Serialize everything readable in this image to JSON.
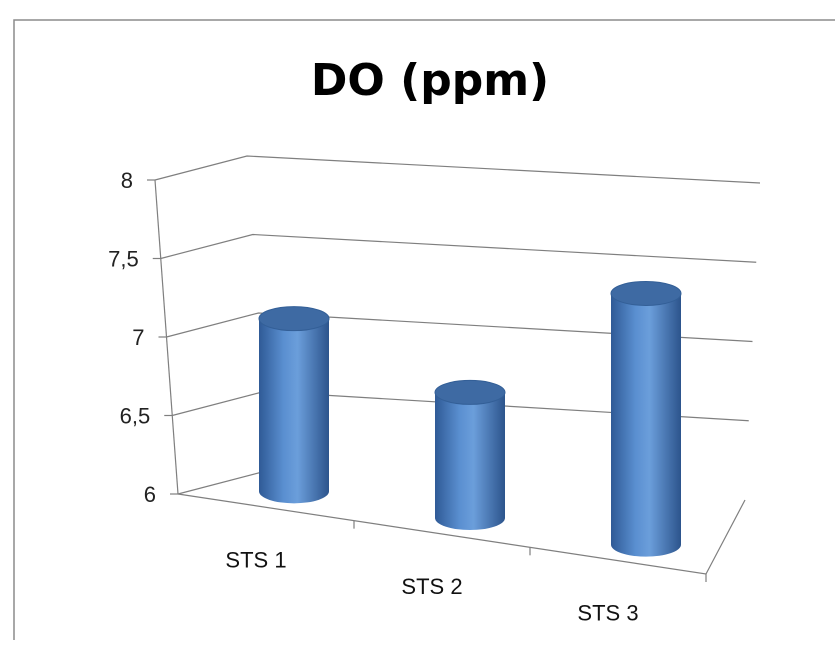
{
  "chart_data": {
    "type": "bar",
    "title": "DO (ppm)",
    "categories": [
      "STS 1",
      "STS 2",
      "STS 3"
    ],
    "values": [
      7.1,
      6.8,
      7.6
    ],
    "ylim": [
      6,
      8
    ],
    "yticks": [
      "6",
      "6,5",
      "7",
      "7,5",
      "8"
    ],
    "ytick_values": [
      6,
      6.5,
      7,
      7.5,
      8
    ],
    "grid": true,
    "style": "3d-cylinder",
    "colors": {
      "bar": "#4f81bd",
      "bar_top": "#3e6aa3",
      "grid": "#7f7f7f"
    }
  }
}
